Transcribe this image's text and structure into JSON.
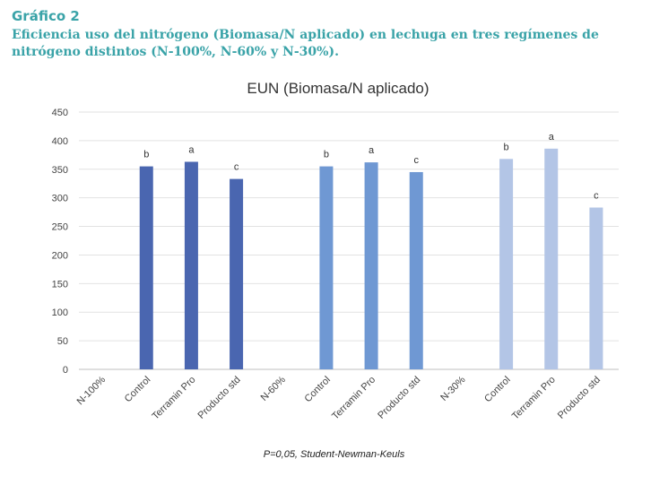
{
  "figure": {
    "label": "Gráfico 2",
    "caption": "Eficiencia uso del nitrógeno (Biomasa/N aplicado) en lechuga en tres regímenes de nitrógeno distintos (N-100%, N-60% y N-30%).",
    "footnote": "P=0,05, Student-Newman-Keuls"
  },
  "chart_data": {
    "type": "bar",
    "title": "EUN (Biomasa/N aplicado)",
    "xlabel": "",
    "ylabel": "",
    "ylim": [
      0,
      450
    ],
    "yticks": [
      0,
      50,
      100,
      150,
      200,
      250,
      300,
      350,
      400,
      450
    ],
    "grid": true,
    "categories": [
      "N-100%",
      "Control",
      "Terramin Pro",
      "Producto std",
      "N-60%",
      "Control",
      "Terramin Pro",
      "Producto std",
      "N-30%",
      "Control",
      "Terramin Pro",
      "Producto std"
    ],
    "values": [
      null,
      355,
      363,
      333,
      null,
      355,
      362,
      345,
      null,
      368,
      386,
      283
    ],
    "letters": [
      "",
      "b",
      "a",
      "c",
      "",
      "b",
      "a",
      "c",
      "",
      "b",
      "a",
      "c"
    ],
    "colors": [
      "#4a66b0",
      "#4a66b0",
      "#4a66b0",
      "#4a66b0",
      "#6f98d3",
      "#6f98d3",
      "#6f98d3",
      "#6f98d3",
      "#b3c5e6",
      "#b3c5e6",
      "#b3c5e6",
      "#b3c5e6"
    ]
  }
}
